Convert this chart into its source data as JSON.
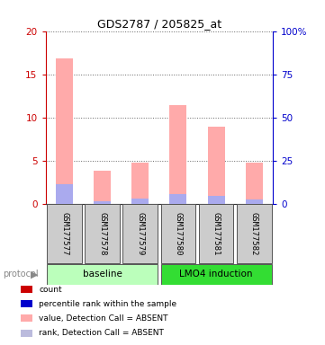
{
  "title": "GDS2787 / 205825_at",
  "samples": [
    "GSM177577",
    "GSM177578",
    "GSM177579",
    "GSM177580",
    "GSM177581",
    "GSM177582"
  ],
  "groups": [
    {
      "label": "baseline",
      "indices": [
        0,
        1,
        2
      ],
      "color": "#bbffbb"
    },
    {
      "label": "LMO4 induction",
      "indices": [
        3,
        4,
        5
      ],
      "color": "#33dd33"
    }
  ],
  "pink_values": [
    16.8,
    3.8,
    4.7,
    11.4,
    8.9,
    4.7
  ],
  "blue_values": [
    2.2,
    0.3,
    0.6,
    1.1,
    0.9,
    0.5
  ],
  "ylim_left": [
    0,
    20
  ],
  "ylim_right": [
    0,
    100
  ],
  "yticks_left": [
    0,
    5,
    10,
    15,
    20
  ],
  "yticks_right": [
    0,
    25,
    50,
    75,
    100
  ],
  "ytick_labels_left": [
    "0",
    "5",
    "10",
    "15",
    "20"
  ],
  "ytick_labels_right": [
    "0",
    "25",
    "50",
    "75",
    "100%"
  ],
  "left_axis_color": "#cc0000",
  "right_axis_color": "#0000cc",
  "pink_bar_color": "#ffaaaa",
  "blue_bar_color": "#aaaaee",
  "grid_color": "#888888",
  "sample_box_color": "#cccccc",
  "sample_box_edge": "#555555",
  "legend_items": [
    {
      "color": "#cc0000",
      "label": "count"
    },
    {
      "color": "#0000cc",
      "label": "percentile rank within the sample"
    },
    {
      "color": "#ffaaaa",
      "label": "value, Detection Call = ABSENT"
    },
    {
      "color": "#bbbbdd",
      "label": "rank, Detection Call = ABSENT"
    }
  ],
  "protocol_label": "protocol",
  "bar_width": 0.45
}
